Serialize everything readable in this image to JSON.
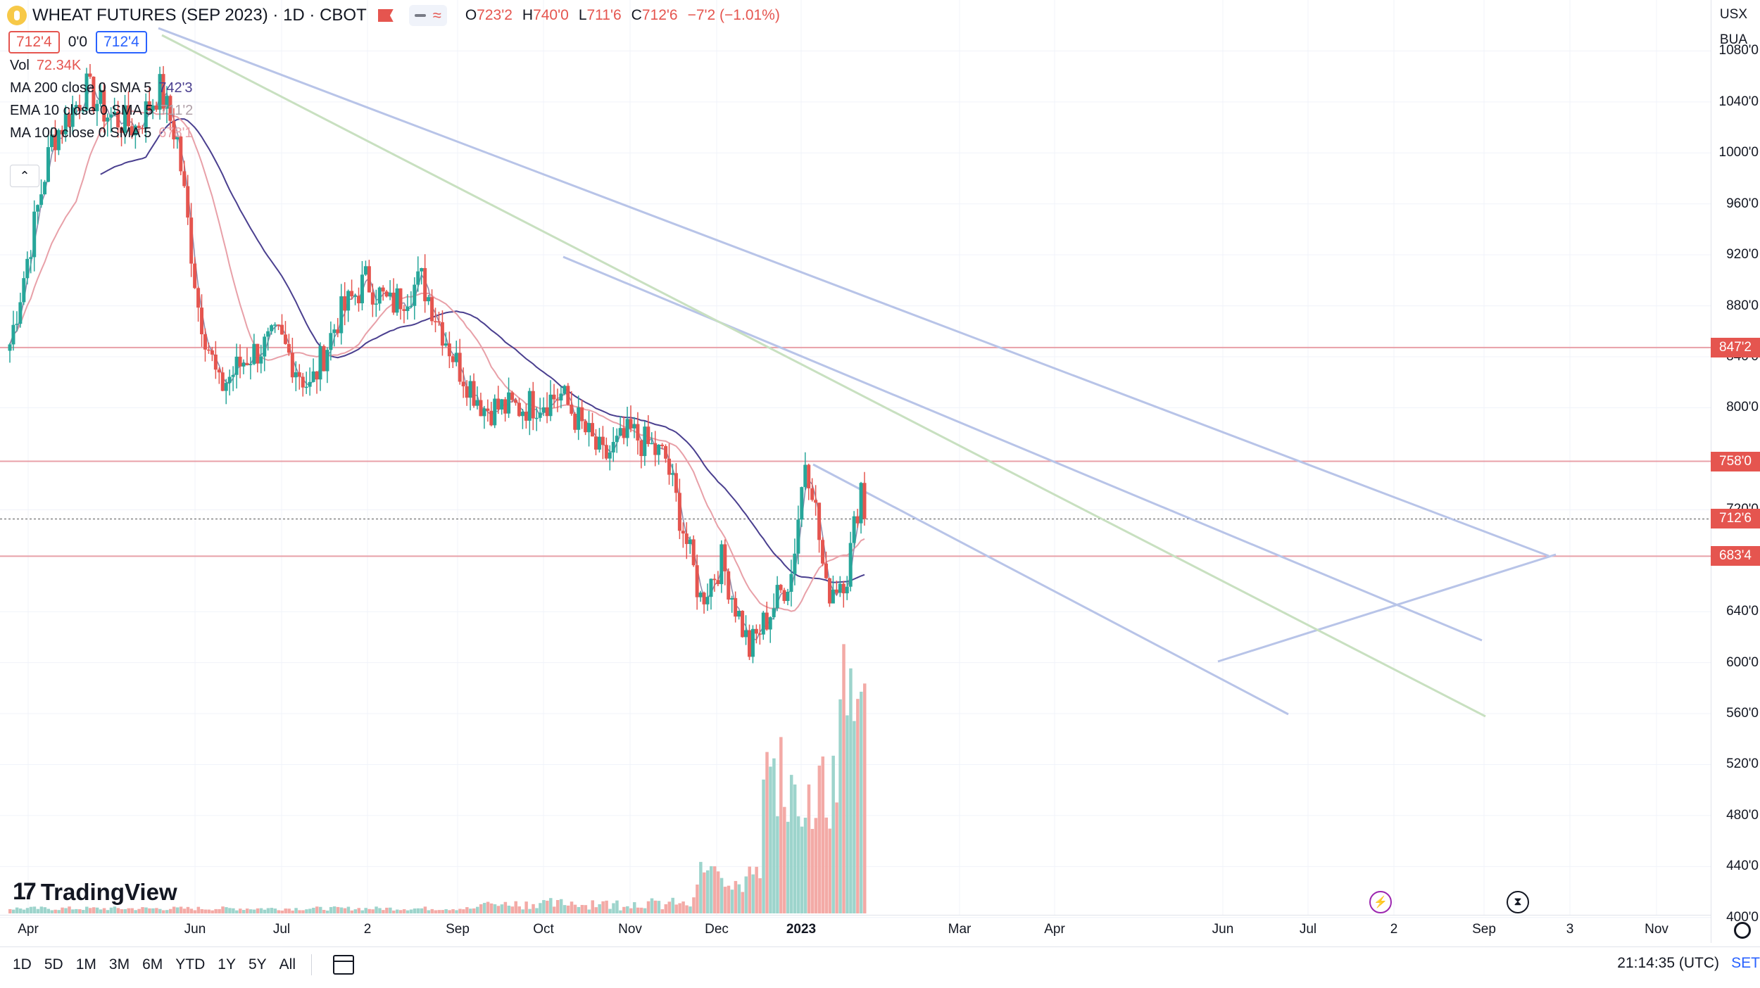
{
  "header": {
    "title": "WHEAT FUTURES (SEP 2023) · 1D · CBOT",
    "ohlc": [
      {
        "k": "O",
        "v": "723'2"
      },
      {
        "k": "H",
        "v": "740'0"
      },
      {
        "k": "L",
        "v": "711'6"
      },
      {
        "k": "C",
        "v": "712'6"
      },
      {
        "k": "",
        "v": "−7'2 (−1.01%)"
      }
    ],
    "approx_symbol": "≈"
  },
  "price_row": {
    "bid": "712'4",
    "spread": "0'0",
    "ask": "712'4"
  },
  "legend": [
    {
      "name": "Vol",
      "value": "72.34K",
      "color": "#e5554f"
    },
    {
      "name": "MA 200 close 0 SMA 5",
      "value": "742'3",
      "color": "#4a3f8f"
    },
    {
      "name": "EMA 10 close 0 SMA 5",
      "value": "711'2",
      "color": "#b0a0a8"
    },
    {
      "name": "MA 100 close 0 SMA 5",
      "value": "678'1",
      "color": "#e8a0a8"
    }
  ],
  "collapse_glyph": "⌃",
  "brand": "TradingView",
  "brand_mark": "17",
  "scale_top": {
    "currency": "USX",
    "unit": "BUA"
  },
  "y_axis": {
    "labels": [
      "1080'0",
      "1040'0",
      "1000'0",
      "960'0",
      "920'0",
      "880'0",
      "840'0",
      "800'0",
      "720'0",
      "640'0",
      "600'0",
      "560'0",
      "520'0",
      "480'0",
      "440'0",
      "400'0"
    ],
    "min": 380,
    "max": 1120
  },
  "price_tags": [
    {
      "label": "847'2",
      "value": 847.25,
      "color": "#e5554f"
    },
    {
      "label": "758'0",
      "value": 758,
      "color": "#e5554f"
    },
    {
      "label": "712'6",
      "value": 712.75,
      "color": "#e5554f"
    },
    {
      "label": "683'4",
      "value": 683.5,
      "color": "#e5554f"
    }
  ],
  "x_axis": [
    {
      "label": "Apr",
      "bold": false
    },
    {
      "label": "Jun",
      "bold": false
    },
    {
      "label": "Jul",
      "bold": false
    },
    {
      "label": "2",
      "bold": false
    },
    {
      "label": "Sep",
      "bold": false
    },
    {
      "label": "Oct",
      "bold": false
    },
    {
      "label": "Nov",
      "bold": false
    },
    {
      "label": "Dec",
      "bold": false
    },
    {
      "label": "2023",
      "bold": true
    },
    {
      "label": "Mar",
      "bold": false
    },
    {
      "label": "Apr",
      "bold": false
    },
    {
      "label": "Jun",
      "bold": false
    },
    {
      "label": "Jul",
      "bold": false
    },
    {
      "label": "2",
      "bold": false
    },
    {
      "label": "Sep",
      "bold": false
    },
    {
      "label": "3",
      "bold": false
    },
    {
      "label": "Nov",
      "bold": false
    }
  ],
  "ranges": [
    "1D",
    "5D",
    "1M",
    "3M",
    "6M",
    "YTD",
    "1Y",
    "5Y",
    "All"
  ],
  "clock": "21:14:35 (UTC)",
  "settings_label": "SET",
  "colors": {
    "up": "#26a69a",
    "down": "#e5554f",
    "trend": "#b8c4e8",
    "green_trend": "#c8e0c0"
  },
  "chart_data": {
    "type": "candlestick",
    "series_keypoints": [
      {
        "x": 0,
        "close": 850
      },
      {
        "x": 60,
        "close": 1010
      },
      {
        "x": 110,
        "close": 1050
      },
      {
        "x": 140,
        "close": 1030
      },
      {
        "x": 180,
        "close": 1020
      },
      {
        "x": 215,
        "close": 1050
      },
      {
        "x": 240,
        "close": 1010
      },
      {
        "x": 270,
        "close": 880
      },
      {
        "x": 300,
        "close": 815
      },
      {
        "x": 340,
        "close": 840
      },
      {
        "x": 385,
        "close": 855
      },
      {
        "x": 430,
        "close": 815
      },
      {
        "x": 470,
        "close": 870
      },
      {
        "x": 510,
        "close": 900
      },
      {
        "x": 545,
        "close": 880
      },
      {
        "x": 590,
        "close": 900
      },
      {
        "x": 640,
        "close": 835
      },
      {
        "x": 680,
        "close": 800
      },
      {
        "x": 730,
        "close": 800
      },
      {
        "x": 790,
        "close": 810
      },
      {
        "x": 850,
        "close": 760
      },
      {
        "x": 890,
        "close": 780
      },
      {
        "x": 940,
        "close": 760
      },
      {
        "x": 990,
        "close": 650
      },
      {
        "x": 1020,
        "close": 680
      },
      {
        "x": 1060,
        "close": 610
      },
      {
        "x": 1090,
        "close": 640
      },
      {
        "x": 1120,
        "close": 670
      },
      {
        "x": 1140,
        "close": 760
      },
      {
        "x": 1150,
        "close": 740
      },
      {
        "x": 1170,
        "close": 655
      },
      {
        "x": 1200,
        "close": 670
      },
      {
        "x": 1220,
        "close": 740
      },
      {
        "x": 1228,
        "close": 713
      }
    ]
  }
}
